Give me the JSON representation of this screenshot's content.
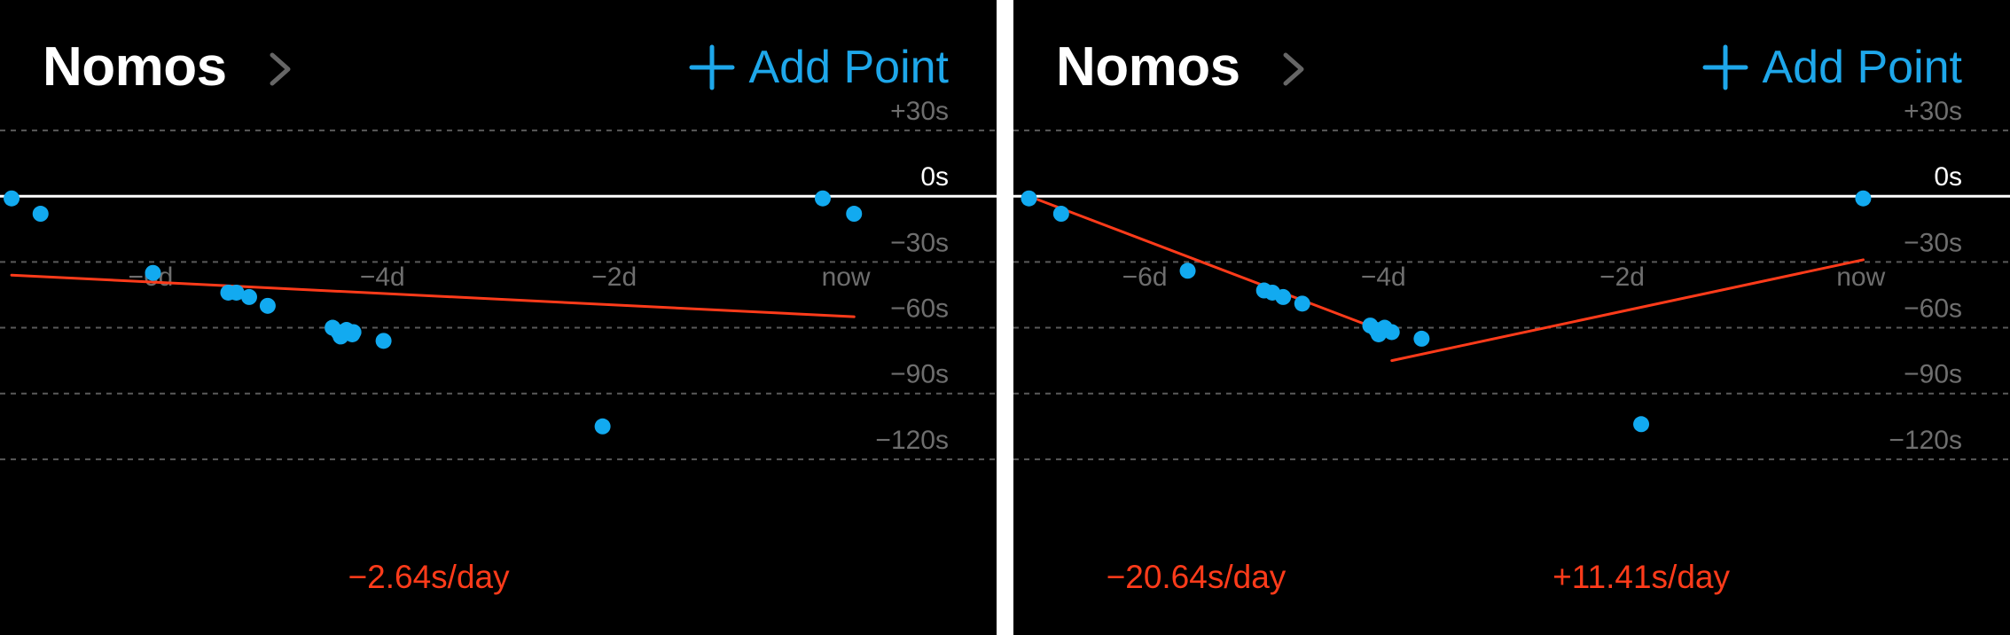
{
  "panels": [
    {
      "title": "Nomos",
      "add_point_label": "Add Point",
      "chart_data": {
        "type": "scatter",
        "x_unit": "days",
        "y_unit": "seconds",
        "x_ticks": [
          {
            "value": -6,
            "label": "−6d"
          },
          {
            "value": -4,
            "label": "−4d"
          },
          {
            "value": -2,
            "label": "−2d"
          },
          {
            "value": 0,
            "label": "now"
          }
        ],
        "y_ticks": [
          {
            "value": 30,
            "label": "+30s"
          },
          {
            "value": 0,
            "label": "0s"
          },
          {
            "value": -30,
            "label": "−30s"
          },
          {
            "value": -60,
            "label": "−60s"
          },
          {
            "value": -90,
            "label": "−90s"
          },
          {
            "value": -120,
            "label": "−120s"
          }
        ],
        "xlim": [
          -7.3,
          1.3
        ],
        "ylim": [
          -150,
          45
        ],
        "points": [
          {
            "x": -7.2,
            "y": -1
          },
          {
            "x": -6.95,
            "y": -8
          },
          {
            "x": -5.98,
            "y": -35
          },
          {
            "x": -5.33,
            "y": -44
          },
          {
            "x": -5.26,
            "y": -44
          },
          {
            "x": -5.15,
            "y": -46
          },
          {
            "x": -4.99,
            "y": -50
          },
          {
            "x": -4.43,
            "y": -60
          },
          {
            "x": -4.38,
            "y": -62
          },
          {
            "x": -4.36,
            "y": -64
          },
          {
            "x": -4.31,
            "y": -61
          },
          {
            "x": -4.26,
            "y": -63
          },
          {
            "x": -4.25,
            "y": -62
          },
          {
            "x": -3.99,
            "y": -66
          },
          {
            "x": -2.1,
            "y": -105
          },
          {
            "x": -0.2,
            "y": -1
          },
          {
            "x": 0.07,
            "y": -8
          }
        ],
        "trend_lines": [
          {
            "x1": -7.2,
            "y1": -36,
            "x2": 0.07,
            "y2": -55,
            "rate_label": "−2.64s/day",
            "label_x": -3.6
          }
        ]
      }
    },
    {
      "title": "Nomos",
      "add_point_label": "Add Point",
      "chart_data": {
        "type": "scatter",
        "x_unit": "days",
        "y_unit": "seconds",
        "x_ticks": [
          {
            "value": -6,
            "label": "−6d"
          },
          {
            "value": -4,
            "label": "−4d"
          },
          {
            "value": -2,
            "label": "−2d"
          },
          {
            "value": 0,
            "label": "now"
          }
        ],
        "y_ticks": [
          {
            "value": 30,
            "label": "+30s"
          },
          {
            "value": 0,
            "label": "0s"
          },
          {
            "value": -30,
            "label": "−30s"
          },
          {
            "value": -60,
            "label": "−60s"
          },
          {
            "value": -90,
            "label": "−90s"
          },
          {
            "value": -120,
            "label": "−120s"
          }
        ],
        "xlim": [
          -7.1,
          1.25
        ],
        "ylim": [
          -150,
          45
        ],
        "points": [
          {
            "x": -6.97,
            "y": -1
          },
          {
            "x": -6.7,
            "y": -8
          },
          {
            "x": -5.64,
            "y": -34
          },
          {
            "x": -5.0,
            "y": -43
          },
          {
            "x": -4.93,
            "y": -44
          },
          {
            "x": -4.84,
            "y": -46
          },
          {
            "x": -4.68,
            "y": -49
          },
          {
            "x": -4.11,
            "y": -59
          },
          {
            "x": -4.06,
            "y": -61
          },
          {
            "x": -4.04,
            "y": -63
          },
          {
            "x": -3.99,
            "y": -60
          },
          {
            "x": -3.93,
            "y": -62
          },
          {
            "x": -3.68,
            "y": -65
          },
          {
            "x": -1.84,
            "y": -104
          },
          {
            "x": 0.02,
            "y": -1
          }
        ],
        "trend_lines": [
          {
            "x1": -6.97,
            "y1": 0,
            "x2": -3.93,
            "y2": -63,
            "rate_label": "−20.64s/day",
            "label_x": -5.57
          },
          {
            "x1": -3.93,
            "y1": -75,
            "x2": 0.02,
            "y2": -29,
            "rate_label": "+11.41s/day",
            "label_x": -1.84
          }
        ]
      }
    }
  ],
  "colors": {
    "background": "#000000",
    "divider": "#ffffff",
    "title": "#ffffff",
    "accent": "#1ea7ea",
    "point": "#12aaf0",
    "trend": "#ff3b1a",
    "grid": "#5a5a5a",
    "zero_line": "#ffffff",
    "tick_label": "#6e6e6e",
    "zero_label": "#ffffff",
    "chevron": "#666666"
  },
  "icons": {
    "chevron": "chevron-right-icon",
    "add": "plus-icon"
  }
}
